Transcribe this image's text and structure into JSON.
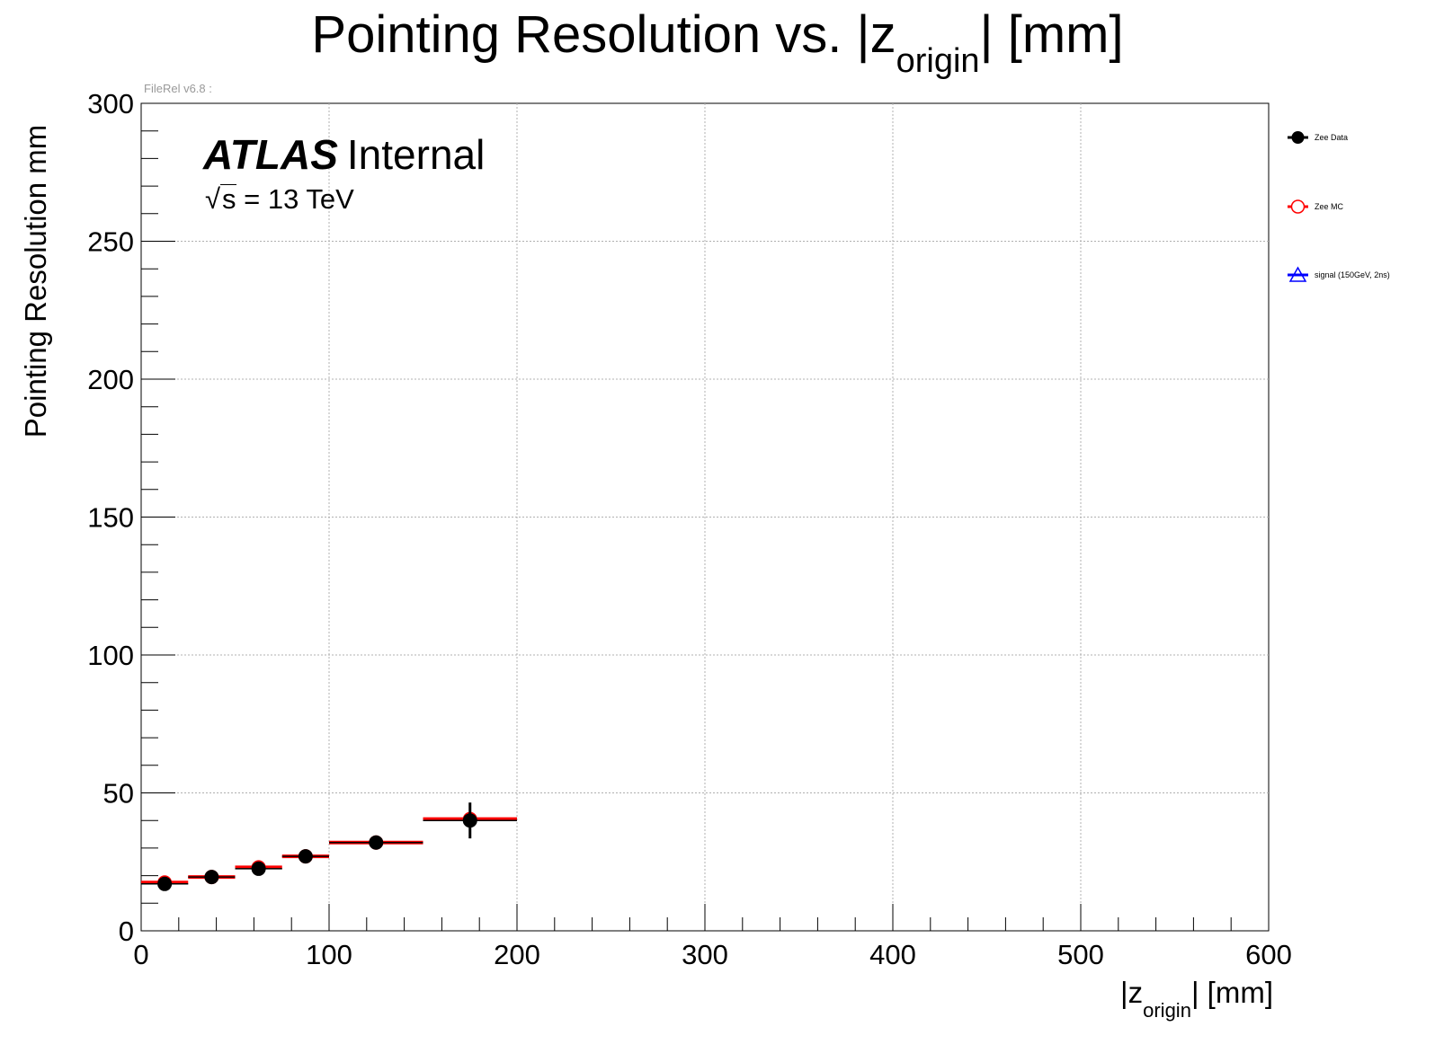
{
  "header": {
    "title_main": "Pointing Resolution vs. |z",
    "title_sub": "origin",
    "title_end": "| [mm]",
    "version": "FileRel v6.8 :"
  },
  "annotations": {
    "atlas": "ATLAS",
    "internal": "Internal",
    "energy_sqrt": "s",
    "energy_rest": " = 13 TeV"
  },
  "chart_data": {
    "type": "scatter",
    "xlabel_main": "|z",
    "xlabel_sub": "origin",
    "xlabel_end": "| [mm]",
    "ylabel": "Pointing Resolution mm",
    "xlim": [
      0,
      600
    ],
    "ylim": [
      0,
      300
    ],
    "xticks": [
      0,
      100,
      200,
      300,
      400,
      500,
      600
    ],
    "yticks": [
      0,
      50,
      100,
      150,
      200,
      250,
      300
    ],
    "grid": true,
    "legend_position": "right",
    "series": [
      {
        "name": "Zee Data",
        "color": "#000000",
        "marker": "filled-circle",
        "points": [
          {
            "x": 12.5,
            "y": 17,
            "xlo": 0,
            "xhi": 25,
            "yerr": 1
          },
          {
            "x": 37.5,
            "y": 19.5,
            "xlo": 25,
            "xhi": 50,
            "yerr": 1
          },
          {
            "x": 62.5,
            "y": 22.5,
            "xlo": 50,
            "xhi": 75,
            "yerr": 1
          },
          {
            "x": 87.5,
            "y": 27,
            "xlo": 75,
            "xhi": 100,
            "yerr": 1
          },
          {
            "x": 125,
            "y": 32,
            "xlo": 100,
            "xhi": 150,
            "yerr": 1
          },
          {
            "x": 175,
            "y": 40,
            "xlo": 150,
            "xhi": 200,
            "yerr": 6.5
          }
        ]
      },
      {
        "name": "Zee MC",
        "color": "#ff0000",
        "marker": "open-circle",
        "points": [
          {
            "x": 12.5,
            "y": 17.5,
            "xlo": 0,
            "xhi": 25,
            "yerr": 0.5
          },
          {
            "x": 37.5,
            "y": 19.5,
            "xlo": 25,
            "xhi": 50,
            "yerr": 0.5
          },
          {
            "x": 62.5,
            "y": 23,
            "xlo": 50,
            "xhi": 75,
            "yerr": 0.5
          },
          {
            "x": 87.5,
            "y": 27,
            "xlo": 75,
            "xhi": 100,
            "yerr": 0.5
          },
          {
            "x": 125,
            "y": 32,
            "xlo": 100,
            "xhi": 150,
            "yerr": 0.5
          },
          {
            "x": 175,
            "y": 40.5,
            "xlo": 150,
            "xhi": 200,
            "yerr": 0.5
          }
        ]
      },
      {
        "name": "signal (150GeV, 2ns)",
        "color": "#0000ff",
        "marker": "open-triangle",
        "points": []
      }
    ]
  }
}
